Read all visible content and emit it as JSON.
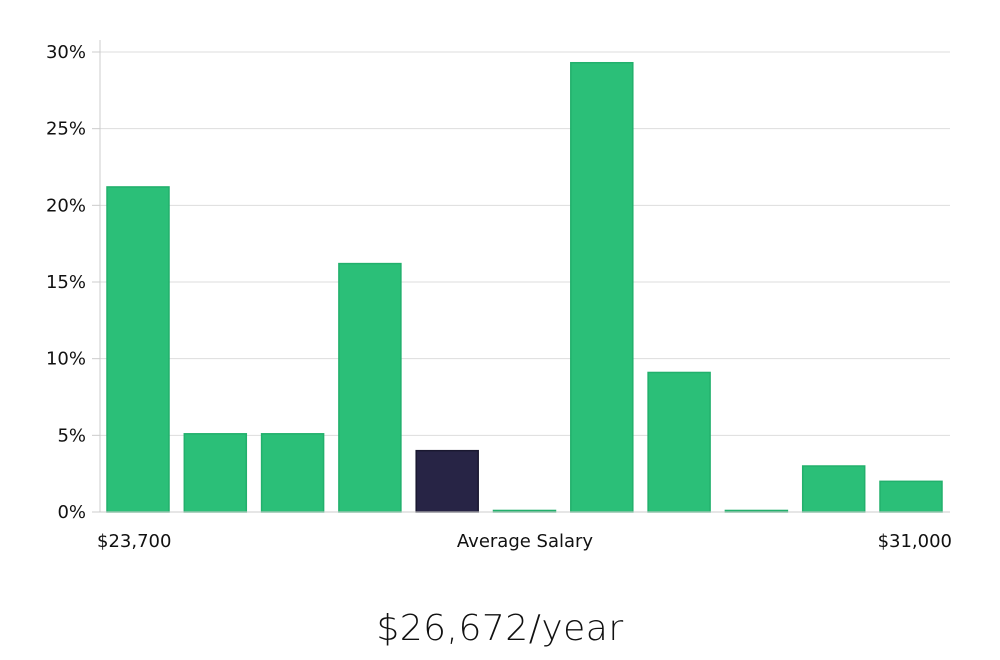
{
  "chart_data": {
    "type": "bar",
    "xlabel": "Average Salary",
    "x_range_labels": {
      "min": "$23,700",
      "max": "$31,000"
    },
    "ylim": [
      0,
      30
    ],
    "y_ticks": [
      "0%",
      "5%",
      "10%",
      "15%",
      "20%",
      "25%",
      "30%"
    ],
    "y_tick_values": [
      0,
      5,
      10,
      15,
      20,
      25,
      30
    ],
    "grid": true,
    "values": [
      21.2,
      5.1,
      5.1,
      16.2,
      4.0,
      0.1,
      29.3,
      9.1,
      0.1,
      3.0,
      2.0
    ],
    "highlight_index": 4,
    "colors": {
      "bar": "#2bbf78",
      "bar_edge": "#22b06c",
      "highlight": "#272445",
      "highlight_edge": "#1a1830"
    }
  },
  "summary": {
    "salary": "$26,672/year"
  }
}
